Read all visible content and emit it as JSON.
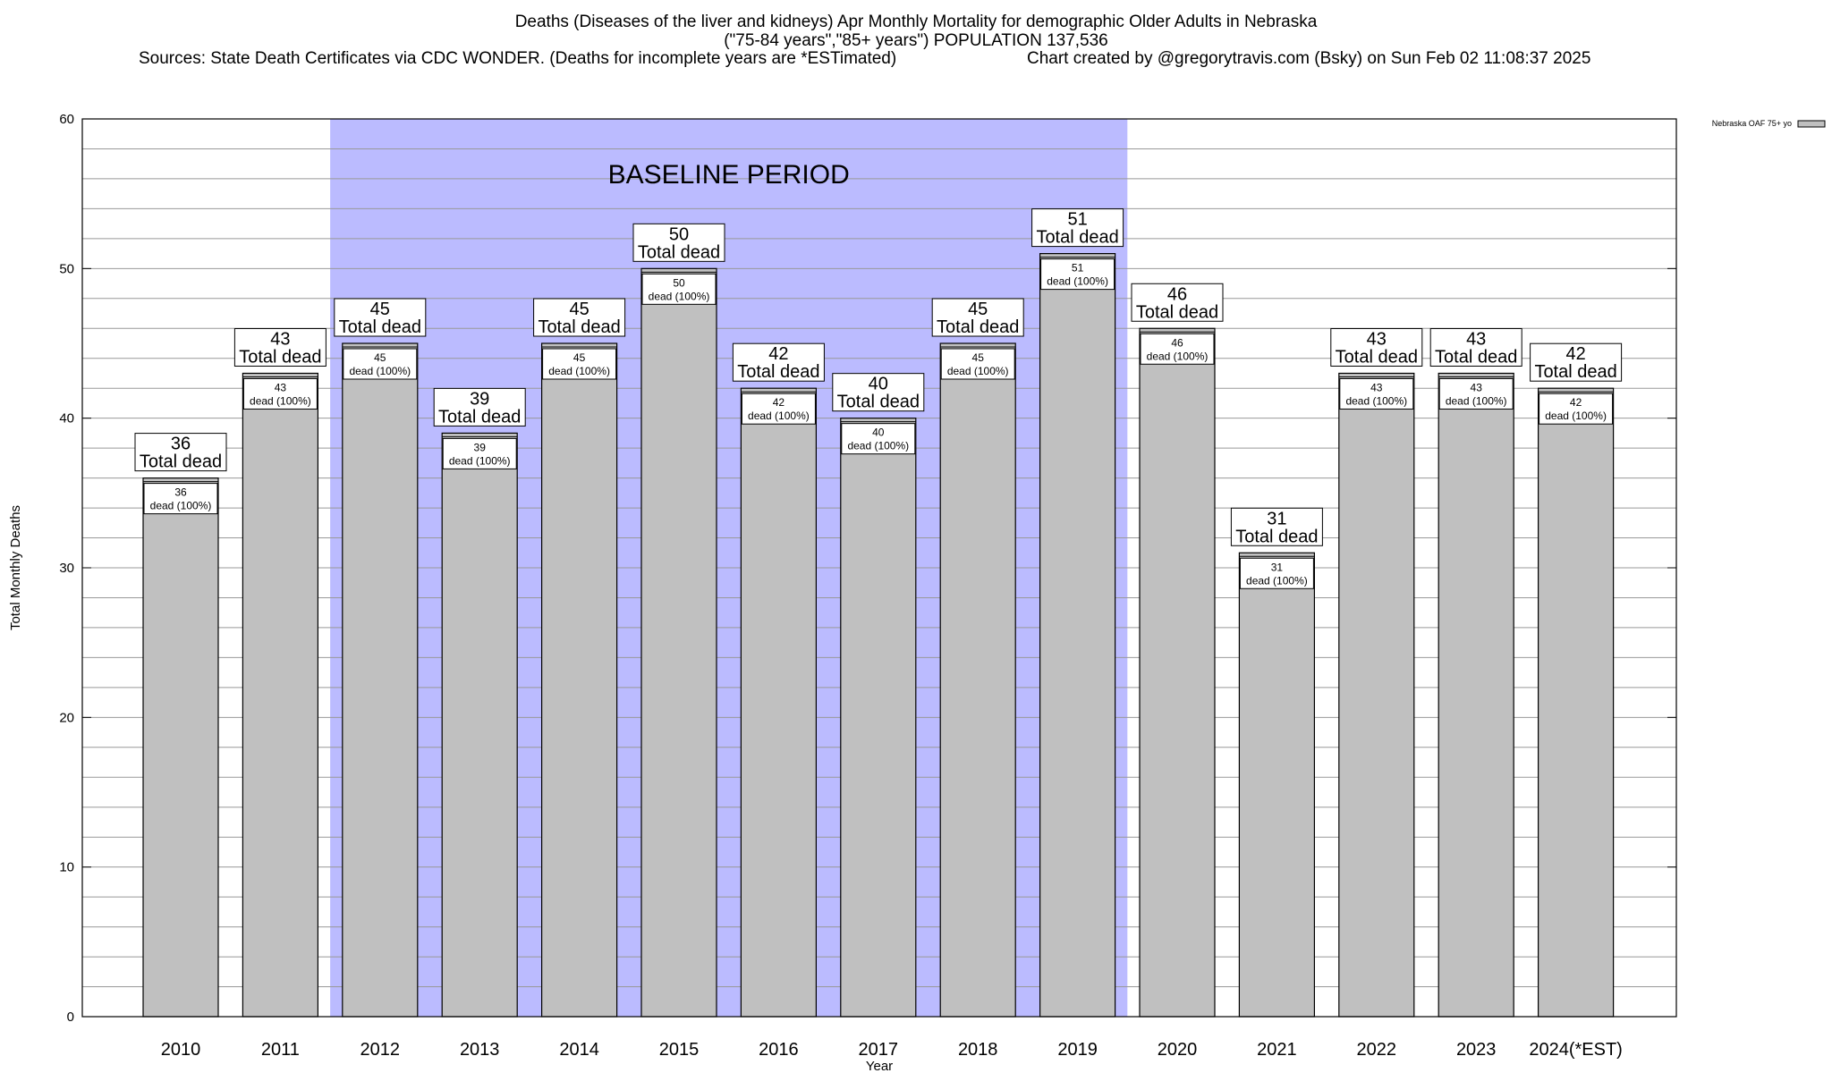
{
  "header": {
    "title_line1": "Deaths (Diseases of the liver and kidneys) Apr Monthly Mortality for demographic Older Adults in Nebraska",
    "title_line2": "(\"75-84 years\",\"85+ years\") POPULATION 137,536",
    "sources": "Sources: State Death Certificates via CDC WONDER. (Deaths for incomplete years are *ESTimated)",
    "credit": "Chart created by @gregorytravis.com (Bsky) on Sun Feb 02 11:08:37 2025"
  },
  "chart_data": {
    "type": "bar",
    "xlabel": "Year",
    "ylabel": "Total Monthly Deaths",
    "ylim": [
      0,
      60
    ],
    "y_ticks": [
      0,
      10,
      20,
      30,
      40,
      50,
      60
    ],
    "grid": true,
    "categories": [
      "2010",
      "2011",
      "2012",
      "2013",
      "2014",
      "2015",
      "2016",
      "2017",
      "2018",
      "2019",
      "2020",
      "2021",
      "2022",
      "2023",
      "2024(*EST)"
    ],
    "series": [
      {
        "name": "Nebraska OAF 75+ yo",
        "values": [
          36,
          43,
          45,
          39,
          45,
          50,
          42,
          40,
          45,
          51,
          46,
          31,
          43,
          43,
          42
        ]
      }
    ],
    "total_label": "Total dead",
    "inner_label": "dead (100%)",
    "baseline": {
      "label": "BASELINE PERIOD",
      "start": "2012",
      "end": "2019"
    },
    "legend": "top-right",
    "colors": {
      "bar": "#c0c0c0",
      "baseline": "#bbbbff",
      "grid": "#999999"
    }
  }
}
